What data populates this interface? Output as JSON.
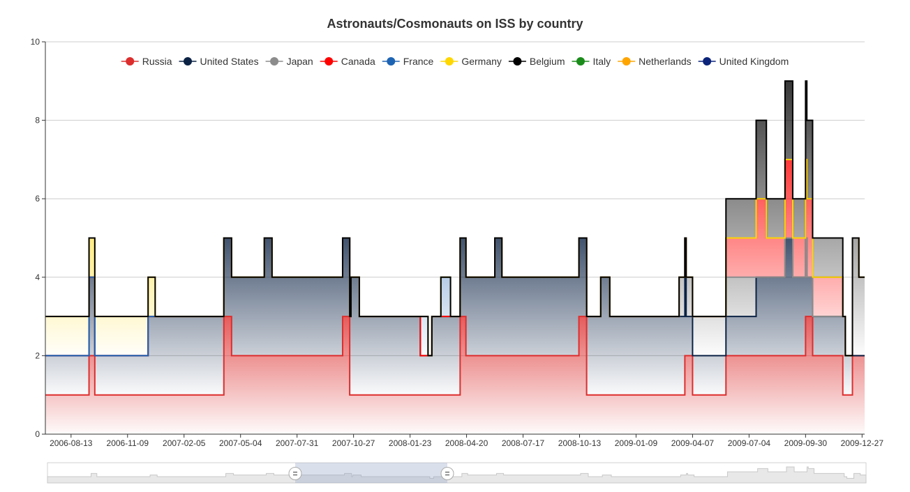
{
  "chart_data": {
    "type": "area",
    "title": "Astronauts/Cosmonauts on ISS by country",
    "stacked": true,
    "step": true,
    "xlabel": "",
    "ylabel": "",
    "ylim": [
      0,
      10
    ],
    "yticks": [
      0,
      2,
      4,
      6,
      8,
      10
    ],
    "xlim": [
      "2006-07-04",
      "2009-12-31"
    ],
    "xticks": [
      "2006-08-13",
      "2006-11-09",
      "2007-02-05",
      "2007-05-04",
      "2007-07-31",
      "2007-10-27",
      "2008-01-23",
      "2008-04-20",
      "2008-07-17",
      "2008-10-13",
      "2009-01-09",
      "2009-04-07",
      "2009-07-04",
      "2009-09-30",
      "2009-12-27"
    ],
    "grid": true,
    "legend_position": "top",
    "series": [
      {
        "name": "Russia",
        "color": "#dd2e2e",
        "steps": [
          [
            "2006-07-04",
            1
          ],
          [
            "2006-09-10",
            2
          ],
          [
            "2006-09-19",
            1
          ],
          [
            "2007-04-08",
            3
          ],
          [
            "2007-04-20",
            2
          ],
          [
            "2007-10-10",
            3
          ],
          [
            "2007-10-21",
            1
          ],
          [
            "2008-04-10",
            3
          ],
          [
            "2008-04-19",
            2
          ],
          [
            "2008-10-12",
            3
          ],
          [
            "2008-10-24",
            1
          ],
          [
            "2009-03-26",
            2
          ],
          [
            "2009-04-07",
            1
          ],
          [
            "2009-05-29",
            2
          ],
          [
            "2009-09-30",
            3
          ],
          [
            "2009-10-11",
            2
          ],
          [
            "2009-11-27",
            1
          ],
          [
            "2009-12-12",
            2
          ],
          [
            "2009-12-31",
            2
          ]
        ]
      },
      {
        "name": "United States",
        "color": "#0b2245",
        "steps": [
          [
            "2006-07-04",
            1
          ],
          [
            "2006-09-10",
            2
          ],
          [
            "2006-09-19",
            1
          ],
          [
            "2006-12-11",
            2
          ],
          [
            "2007-04-08",
            2
          ],
          [
            "2007-06-10",
            3
          ],
          [
            "2007-06-22",
            2
          ],
          [
            "2007-10-10",
            2
          ],
          [
            "2007-10-23",
            3
          ],
          [
            "2007-11-05",
            2
          ],
          [
            "2008-02-08",
            1
          ],
          [
            "2008-02-26",
            2
          ],
          [
            "2008-04-10",
            2
          ],
          [
            "2008-06-03",
            3
          ],
          [
            "2008-06-14",
            2
          ],
          [
            "2008-10-12",
            2
          ],
          [
            "2008-11-15",
            3
          ],
          [
            "2008-11-29",
            2
          ],
          [
            "2009-03-17",
            2
          ],
          [
            "2009-03-28",
            1
          ],
          [
            "2009-04-07",
            1
          ],
          [
            "2009-05-29",
            1
          ],
          [
            "2009-07-15",
            2
          ],
          [
            "2009-08-29",
            3
          ],
          [
            "2009-09-10",
            2
          ],
          [
            "2009-10-02",
            1
          ],
          [
            "2009-11-27",
            2
          ],
          [
            "2009-12-01",
            1
          ],
          [
            "2009-12-12",
            0
          ],
          [
            "2009-12-31",
            0
          ]
        ]
      },
      {
        "name": "Japan",
        "color": "#8c8c8c",
        "steps": [
          [
            "2006-07-04",
            0
          ],
          [
            "2009-03-17",
            1
          ],
          [
            "2009-07-15",
            0
          ],
          [
            "2009-12-12",
            3
          ],
          [
            "2009-12-22",
            2
          ],
          [
            "2009-12-31",
            2
          ]
        ]
      },
      {
        "name": "Canada",
        "color": "#ff0000",
        "steps": [
          [
            "2006-07-04",
            0
          ],
          [
            "2009-05-29",
            1
          ],
          [
            "2009-07-15",
            2
          ],
          [
            "2009-07-31",
            1
          ],
          [
            "2009-08-29",
            2
          ],
          [
            "2009-09-10",
            1
          ],
          [
            "2009-09-30",
            2
          ],
          [
            "2009-10-11",
            1
          ],
          [
            "2009-11-27",
            0
          ],
          [
            "2009-12-31",
            0
          ]
        ]
      },
      {
        "name": "France",
        "color": "#1e64b4",
        "steps": [
          [
            "2006-07-04",
            0
          ],
          [
            "2008-02-08",
            1
          ],
          [
            "2008-02-20",
            0
          ],
          [
            "2008-03-11",
            1
          ],
          [
            "2008-03-26",
            0
          ],
          [
            "2009-12-31",
            0
          ]
        ]
      },
      {
        "name": "Germany",
        "color": "#ffd700",
        "steps": [
          [
            "2006-07-04",
            1
          ],
          [
            "2006-09-10",
            1
          ],
          [
            "2006-09-19",
            1
          ],
          [
            "2006-12-11",
            1
          ],
          [
            "2006-12-22",
            0
          ],
          [
            "2009-12-31",
            0
          ]
        ]
      },
      {
        "name": "Belgium",
        "color": "#000000",
        "steps": [
          [
            "2006-07-04",
            0
          ],
          [
            "2009-05-29",
            1
          ],
          [
            "2009-07-15",
            2
          ],
          [
            "2009-07-31",
            1
          ],
          [
            "2009-08-29",
            2
          ],
          [
            "2009-09-10",
            1
          ],
          [
            "2009-09-30",
            2
          ],
          [
            "2009-10-11",
            1
          ],
          [
            "2009-11-27",
            0
          ],
          [
            "2009-12-31",
            0
          ]
        ]
      },
      {
        "name": "Italy",
        "color": "#1a8c1a",
        "steps": [
          [
            "2006-07-04",
            0
          ],
          [
            "2009-12-31",
            0
          ]
        ]
      },
      {
        "name": "Netherlands",
        "color": "#ffa500",
        "steps": [
          [
            "2006-07-04",
            0
          ],
          [
            "2009-12-31",
            0
          ]
        ]
      },
      {
        "name": "United Kingdom",
        "color": "#0b237a",
        "steps": [
          [
            "2006-07-04",
            0
          ],
          [
            "2009-12-31",
            0
          ]
        ]
      }
    ],
    "data_zoom": {
      "start": "2006-07-04",
      "end": "2009-12-31"
    }
  }
}
